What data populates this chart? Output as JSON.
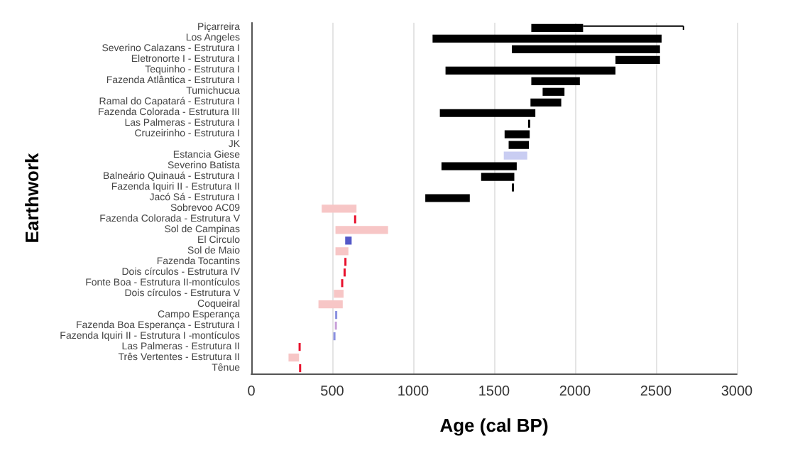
{
  "chart_data": {
    "type": "bar",
    "orientation": "horizontal",
    "xlabel": "Age (cal BP)",
    "ylabel": "Earthwork",
    "categories": [
      "Piçarreira",
      "Los Angeles",
      "Severino Calazans - Estrutura I",
      "Eletronorte I - Estrutura I",
      "Tequinho - Estrutura I",
      "Fazenda Atlântica - Estrutura I",
      "Tumichucua",
      "Ramal do Capatará - Estrutura I",
      "Fazenda Colorada - Estrutura III",
      "Las Palmeras - Estrutura I",
      "Cruzeirinho - Estrutura I",
      "JK",
      "Estancia Giese",
      "Severino Batista",
      "Balneário Quinauá - Estrutura I",
      "Fazenda Iquiri II - Estrutura II",
      "Jacó Sá - Estrutura I",
      "Sobrevoo AC09",
      "Fazenda Colorada - Estrutura V",
      "Sol de Campinas",
      "El Circulo",
      "Sol de Maio",
      "Fazenda Tocantins",
      "Dois círculos - Estrutura IV",
      "Fonte Boa - Estrutura II-montículos",
      "Dois círculos - Estrutura V",
      "Coqueiral",
      "Campo Esperança",
      "Fazenda Boa Esperança - Estrutura I",
      "Fazenda Iquiri II - Estrutura I -montículos",
      "Las Palmeras - Estrutura II",
      "Três Vertentes - Estrutura II",
      "Tênue"
    ],
    "base": [
      1730,
      1120,
      1610,
      2250,
      1200,
      1730,
      1800,
      1725,
      1165,
      1710,
      1565,
      1590,
      1560,
      1175,
      1420,
      1610,
      1075,
      435,
      635,
      520,
      580,
      520,
      575,
      570,
      555,
      510,
      415,
      518,
      516,
      507,
      292,
      230,
      295
    ],
    "values": [
      320,
      1415,
      915,
      275,
      1050,
      300,
      135,
      190,
      590,
      10,
      155,
      125,
      145,
      465,
      205,
      10,
      275,
      215,
      10,
      325,
      40,
      80,
      10,
      10,
      10,
      60,
      150,
      8,
      8,
      8,
      8,
      65,
      10
    ],
    "errors": [
      [
        2050,
        2670
      ],
      null,
      null,
      null,
      null,
      null,
      null,
      null,
      null,
      null,
      null,
      null,
      null,
      null,
      null,
      null,
      null,
      null,
      null,
      null,
      null,
      null,
      null,
      null,
      null,
      null,
      null,
      null,
      null,
      null,
      null,
      null,
      null
    ],
    "colors": [
      "#000000",
      "#000000",
      "#000000",
      "#000000",
      "#000000",
      "#000000",
      "#000000",
      "#000000",
      "#000000",
      "#000000",
      "#000000",
      "#000000",
      "#c9cdf2",
      "#000000",
      "#000000",
      "#000000",
      "#000000",
      "#f7c6c6",
      "#e8112d",
      "#f7c6c6",
      "#5458c8",
      "#f7c6c6",
      "#e8112d",
      "#e8112d",
      "#e8112d",
      "#f7c6c6",
      "#f7c6c6",
      "#8a90e0",
      "#c8a0d8",
      "#8a90e0",
      "#e8112d",
      "#f7c6c6",
      "#e8112d"
    ],
    "xlim": [
      0,
      3000
    ],
    "xticks": [
      0,
      500,
      1000,
      1500,
      2000,
      2500,
      3000
    ],
    "grid": "x"
  }
}
